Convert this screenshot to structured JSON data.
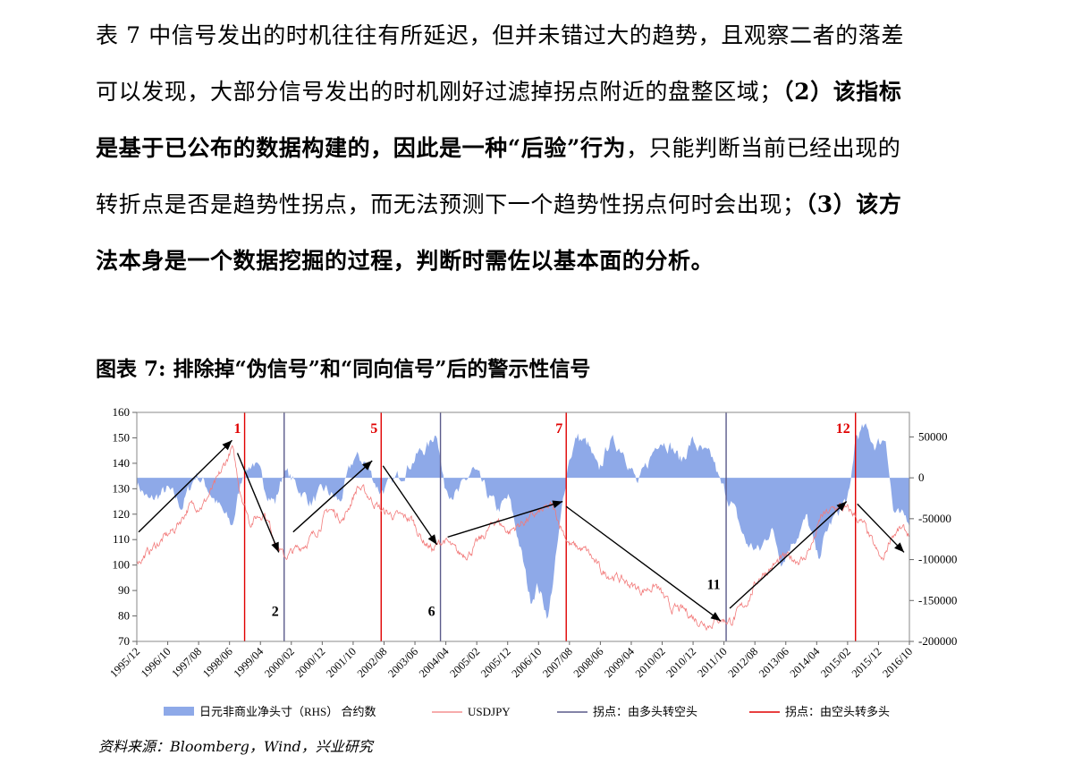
{
  "paragraph": {
    "l1": "表 7 中信号发出的时机往往有所延迟，但并未错过大的趋势，且观察二者的落差",
    "l2a": "可以发现，大部分信号发出的时机刚好过滤掉拐点附近的盘整区域；",
    "l2b": "（2）该指标",
    "l3a": "是基于已公布的数据构建的，因此是一种“后验”行为",
    "l3b": "，只能判断当前已经出现的",
    "l4a": "转折点是否是趋势性拐点，而无法预测下一个趋势性拐点何时会出现；",
    "l4b": "（3）该方",
    "l5": "法本身是一个数据挖掘的过程，判断时需佐以基本面的分析。"
  },
  "figure_title": "图表 7:  排除掉“伪信号”和“同向信号”后的警示性信号",
  "source": "资料来源：Bloomberg，Wind，兴业研究",
  "chart_data": {
    "type": "line",
    "x_ticks": [
      "1995/12",
      "1996/10",
      "1997/08",
      "1998/06",
      "1999/04",
      "2000/02",
      "2000/12",
      "2001/10",
      "2002/08",
      "2003/06",
      "2004/04",
      "2005/02",
      "2005/12",
      "2006/10",
      "2007/08",
      "2008/06",
      "2009/04",
      "2010/02",
      "2010/12",
      "2011/10",
      "2012/08",
      "2013/06",
      "2014/04",
      "2015/02",
      "2015/12",
      "2016/10"
    ],
    "left_axis": {
      "ticks": [
        "70",
        "80",
        "90",
        "100",
        "110",
        "120",
        "130",
        "140",
        "150",
        "160"
      ],
      "ylim": [
        70,
        160
      ]
    },
    "right_axis": {
      "ticks": [
        "50000",
        "0",
        "-50000",
        "-100000",
        "-150000",
        "-200000"
      ],
      "ylim": [
        -200000,
        80000
      ]
    },
    "series": [
      {
        "name": "日元非商业净头寸（RHS） 合约数",
        "type": "area",
        "axis": "right",
        "color": "#8EA9E8",
        "keypoints": [
          [
            1995.95,
            -5000
          ],
          [
            1996.3,
            -30000
          ],
          [
            1996.8,
            -15000
          ],
          [
            1997.2,
            -35000
          ],
          [
            1997.6,
            5000
          ],
          [
            1997.9,
            -10000
          ],
          [
            1998.3,
            -40000
          ],
          [
            1998.6,
            -60000
          ],
          [
            1998.9,
            5000
          ],
          [
            1999.2,
            20000
          ],
          [
            1999.5,
            -10000
          ],
          [
            1999.8,
            -30000
          ],
          [
            2000.05,
            10000
          ],
          [
            2000.4,
            -10000
          ],
          [
            2000.8,
            -30000
          ],
          [
            2001.2,
            -15000
          ],
          [
            2001.6,
            -30000
          ],
          [
            2002.0,
            25000
          ],
          [
            2002.3,
            20000
          ],
          [
            2002.7,
            -15000
          ],
          [
            2003.0,
            -10000
          ],
          [
            2003.4,
            10000
          ],
          [
            2003.8,
            30000
          ],
          [
            2004.1,
            40000
          ],
          [
            2004.3,
            60000
          ],
          [
            2004.5,
            -10000
          ],
          [
            2004.9,
            -20000
          ],
          [
            2005.3,
            10000
          ],
          [
            2005.7,
            -20000
          ],
          [
            2006.0,
            -40000
          ],
          [
            2006.3,
            -25000
          ],
          [
            2006.6,
            -80000
          ],
          [
            2006.9,
            -150000
          ],
          [
            2007.1,
            -130000
          ],
          [
            2007.4,
            -170000
          ],
          [
            2007.7,
            -70000
          ],
          [
            2007.95,
            20000
          ],
          [
            2008.2,
            50000
          ],
          [
            2008.5,
            40000
          ],
          [
            2008.8,
            5000
          ],
          [
            2009.1,
            45000
          ],
          [
            2009.5,
            35000
          ],
          [
            2009.9,
            -10000
          ],
          [
            2010.2,
            20000
          ],
          [
            2010.5,
            50000
          ],
          [
            2010.8,
            40000
          ],
          [
            2011.1,
            20000
          ],
          [
            2011.4,
            45000
          ],
          [
            2011.7,
            30000
          ],
          [
            2012.0,
            20000
          ],
          [
            2012.2,
            -10000
          ],
          [
            2012.5,
            -30000
          ],
          [
            2012.9,
            -80000
          ],
          [
            2013.3,
            -90000
          ],
          [
            2013.6,
            -60000
          ],
          [
            2013.9,
            -100000
          ],
          [
            2014.3,
            -70000
          ],
          [
            2014.6,
            -50000
          ],
          [
            2014.9,
            -100000
          ],
          [
            2015.2,
            -60000
          ],
          [
            2015.5,
            -40000
          ],
          [
            2015.8,
            -20000
          ],
          [
            2015.95,
            50000
          ],
          [
            2016.2,
            60000
          ],
          [
            2016.5,
            40000
          ],
          [
            2016.8,
            50000
          ],
          [
            2017.0,
            -40000
          ],
          [
            2017.2,
            -50000
          ],
          [
            2017.45,
            -50000
          ]
        ]
      },
      {
        "name": "USDJPY",
        "type": "line",
        "axis": "left",
        "color": "#F27A7A",
        "keypoints": [
          [
            1995.95,
            101
          ],
          [
            1996.5,
            108
          ],
          [
            1997.0,
            114
          ],
          [
            1997.4,
            123
          ],
          [
            1997.8,
            124
          ],
          [
            1998.2,
            133
          ],
          [
            1998.6,
            146
          ],
          [
            1998.8,
            131
          ],
          [
            1999.1,
            117
          ],
          [
            1999.5,
            121
          ],
          [
            1999.8,
            110
          ],
          [
            2000.05,
            103
          ],
          [
            2000.5,
            107
          ],
          [
            2000.9,
            112
          ],
          [
            2001.3,
            122
          ],
          [
            2001.7,
            118
          ],
          [
            2002.1,
            131
          ],
          [
            2002.4,
            127
          ],
          [
            2002.8,
            121
          ],
          [
            2003.2,
            119
          ],
          [
            2003.6,
            118
          ],
          [
            2003.9,
            110
          ],
          [
            2004.2,
            106
          ],
          [
            2004.5,
            110
          ],
          [
            2004.9,
            104
          ],
          [
            2005.2,
            105
          ],
          [
            2005.6,
            111
          ],
          [
            2005.95,
            118
          ],
          [
            2006.3,
            113
          ],
          [
            2006.7,
            117
          ],
          [
            2007.1,
            120
          ],
          [
            2007.5,
            123
          ],
          [
            2007.7,
            117
          ],
          [
            2008.0,
            108
          ],
          [
            2008.5,
            105
          ],
          [
            2008.9,
            97
          ],
          [
            2009.2,
            96
          ],
          [
            2009.6,
            93
          ],
          [
            2010.0,
            90
          ],
          [
            2010.4,
            92
          ],
          [
            2010.8,
            83
          ],
          [
            2011.2,
            82
          ],
          [
            2011.6,
            78
          ],
          [
            2011.9,
            77
          ],
          [
            2012.1,
            79
          ],
          [
            2012.5,
            78
          ],
          [
            2012.9,
            85
          ],
          [
            2013.3,
            96
          ],
          [
            2013.7,
            100
          ],
          [
            2014.0,
            103
          ],
          [
            2014.5,
            102
          ],
          [
            2014.8,
            110
          ],
          [
            2015.0,
            119
          ],
          [
            2015.5,
            123
          ],
          [
            2015.9,
            120
          ],
          [
            2016.2,
            115
          ],
          [
            2016.5,
            106
          ],
          [
            2016.7,
            101
          ],
          [
            2016.95,
            112
          ],
          [
            2017.2,
            114
          ],
          [
            2017.45,
            112
          ]
        ]
      },
      {
        "name": "拐点：由多头转空头",
        "type": "vline",
        "color": "#5A5A8A"
      },
      {
        "name": "拐点：由空头转多头",
        "type": "vline",
        "color": "#E00000"
      }
    ],
    "turning_points": [
      {
        "label": "1",
        "x": 1998.95,
        "kind": "空头转多头"
      },
      {
        "label": "2",
        "x": 2000.05,
        "kind": "多头转空头"
      },
      {
        "label": "5",
        "x": 2002.75,
        "kind": "空头转多头"
      },
      {
        "label": "6",
        "x": 2004.4,
        "kind": "多头转空头"
      },
      {
        "label": "7",
        "x": 2007.9,
        "kind": "空头转多头"
      },
      {
        "label": "11",
        "x": 2012.35,
        "kind": "多头转空头"
      },
      {
        "label": "12",
        "x": 2015.95,
        "kind": "空头转多头"
      }
    ],
    "trend_arrows": [
      [
        [
          1996.0,
          113
        ],
        [
          1998.6,
          149
        ]
      ],
      [
        [
          1998.75,
          144
        ],
        [
          1999.9,
          105
        ]
      ],
      [
        [
          2000.3,
          113
        ],
        [
          2002.5,
          141
        ]
      ],
      [
        [
          2002.8,
          139
        ],
        [
          2004.3,
          108
        ]
      ],
      [
        [
          2004.6,
          111
        ],
        [
          2007.8,
          125
        ]
      ],
      [
        [
          2007.9,
          123
        ],
        [
          2012.2,
          78
        ]
      ],
      [
        [
          2012.45,
          83
        ],
        [
          2015.7,
          125
        ]
      ],
      [
        [
          2016.0,
          124
        ],
        [
          2017.3,
          105
        ]
      ]
    ]
  }
}
